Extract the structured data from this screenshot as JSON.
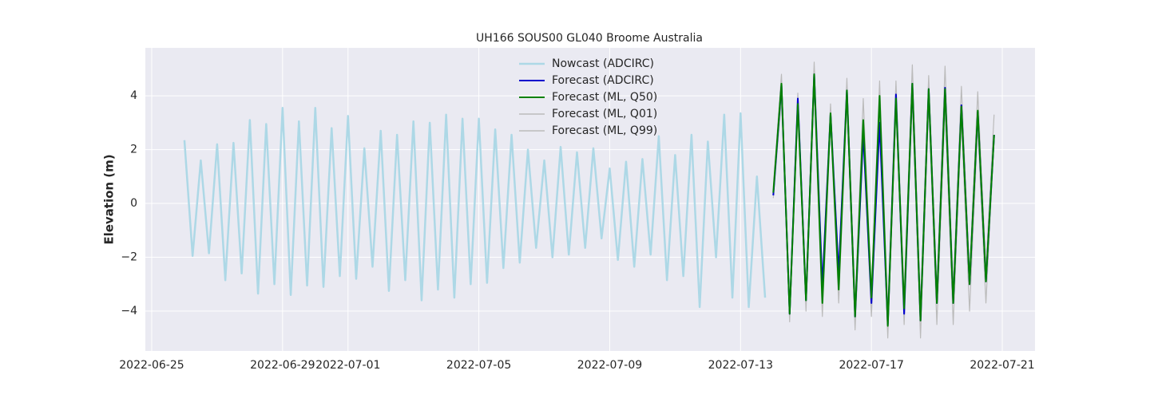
{
  "chart_data": {
    "type": "line",
    "title": "UH166 SOUS00 GL040 Broome Australia",
    "ylabel": "Elevation (m)",
    "xlim": [
      "2022-06-24T19:20",
      "2022-07-22T00:00"
    ],
    "xticks": [
      "2022-06-25",
      "2022-06-29",
      "2022-07-01",
      "2022-07-05",
      "2022-07-09",
      "2022-07-13",
      "2022-07-17",
      "2022-07-21"
    ],
    "ylim": [
      -5.48,
      5.78
    ],
    "yticks": [
      {
        "value": -4,
        "label": "−4"
      },
      {
        "value": -2,
        "label": "−2"
      },
      0,
      2,
      4
    ],
    "grid": true,
    "legend": "upper center",
    "series": [
      {
        "name": "Nowcast (ADCIRC)",
        "color": "#add8e6",
        "linewidth": 2.5,
        "x": [
          "2022-06-26T00:00",
          "2022-06-26T06:00",
          "2022-06-26T12:00",
          "2022-06-26T18:00",
          "2022-06-27T00:00",
          "2022-06-27T06:00",
          "2022-06-27T12:00",
          "2022-06-27T18:00",
          "2022-06-28T00:00",
          "2022-06-28T06:00",
          "2022-06-28T12:00",
          "2022-06-28T18:00",
          "2022-06-29T00:00",
          "2022-06-29T06:00",
          "2022-06-29T12:00",
          "2022-06-29T18:00",
          "2022-06-30T00:00",
          "2022-06-30T06:00",
          "2022-06-30T12:00",
          "2022-06-30T18:00",
          "2022-07-01T00:00",
          "2022-07-01T06:00",
          "2022-07-01T12:00",
          "2022-07-01T18:00",
          "2022-07-02T00:00",
          "2022-07-02T06:00",
          "2022-07-02T12:00",
          "2022-07-02T18:00",
          "2022-07-03T00:00",
          "2022-07-03T06:00",
          "2022-07-03T12:00",
          "2022-07-03T18:00",
          "2022-07-04T00:00",
          "2022-07-04T06:00",
          "2022-07-04T12:00",
          "2022-07-04T18:00",
          "2022-07-05T00:00",
          "2022-07-05T06:00",
          "2022-07-05T12:00",
          "2022-07-05T18:00",
          "2022-07-06T00:00",
          "2022-07-06T06:00",
          "2022-07-06T12:00",
          "2022-07-06T18:00",
          "2022-07-07T00:00",
          "2022-07-07T06:00",
          "2022-07-07T12:00",
          "2022-07-07T18:00",
          "2022-07-08T00:00",
          "2022-07-08T06:00",
          "2022-07-08T12:00",
          "2022-07-08T18:00",
          "2022-07-09T00:00",
          "2022-07-09T06:00",
          "2022-07-09T12:00",
          "2022-07-09T18:00",
          "2022-07-10T00:00",
          "2022-07-10T06:00",
          "2022-07-10T12:00",
          "2022-07-10T18:00",
          "2022-07-11T00:00",
          "2022-07-11T06:00",
          "2022-07-11T12:00",
          "2022-07-11T18:00",
          "2022-07-12T00:00",
          "2022-07-12T06:00",
          "2022-07-12T12:00",
          "2022-07-12T18:00",
          "2022-07-13T00:00",
          "2022-07-13T06:00",
          "2022-07-13T12:00",
          "2022-07-13T18:00"
        ],
        "values": [
          2.35,
          -1.95,
          1.6,
          -1.85,
          2.2,
          -2.85,
          2.25,
          -2.6,
          3.1,
          -3.35,
          2.95,
          -3.0,
          3.55,
          -3.4,
          3.05,
          -3.05,
          3.55,
          -3.1,
          2.8,
          -2.7,
          3.25,
          -2.8,
          2.05,
          -2.35,
          2.7,
          -3.25,
          2.55,
          -2.85,
          3.05,
          -3.6,
          3.0,
          -3.2,
          3.3,
          -3.5,
          3.15,
          -3.0,
          3.15,
          -2.95,
          2.75,
          -2.4,
          2.55,
          -2.2,
          2.0,
          -1.65,
          1.6,
          -2.0,
          2.1,
          -1.9,
          1.9,
          -1.65,
          2.05,
          -1.3,
          1.3,
          -2.1,
          1.55,
          -2.35,
          1.65,
          -1.9,
          2.5,
          -2.85,
          1.8,
          -2.7,
          2.55,
          -3.85,
          2.3,
          -2.0,
          3.3,
          -3.5,
          3.35,
          -3.85,
          1.0,
          -3.5
        ]
      },
      {
        "name": "Forecast (ADCIRC)",
        "color": "#0000cd",
        "linewidth": 2,
        "x": [
          "2022-07-14T00:00",
          "2022-07-14T06:00",
          "2022-07-14T12:00",
          "2022-07-14T18:00",
          "2022-07-15T00:00",
          "2022-07-15T06:00",
          "2022-07-15T12:00",
          "2022-07-15T18:00",
          "2022-07-16T00:00",
          "2022-07-16T06:00",
          "2022-07-16T12:00",
          "2022-07-16T18:00",
          "2022-07-17T00:00",
          "2022-07-17T06:00",
          "2022-07-17T12:00",
          "2022-07-17T18:00",
          "2022-07-18T00:00",
          "2022-07-18T06:00",
          "2022-07-18T12:00",
          "2022-07-18T18:00",
          "2022-07-19T00:00",
          "2022-07-19T06:00",
          "2022-07-19T12:00",
          "2022-07-19T18:00",
          "2022-07-20T00:00",
          "2022-07-20T06:00",
          "2022-07-20T12:00",
          "2022-07-20T18:00"
        ],
        "values": [
          0.3,
          4.4,
          -4.1,
          3.9,
          -3.6,
          4.8,
          -3.1,
          3.3,
          -2.6,
          4.2,
          -4.2,
          2.6,
          -3.7,
          3.0,
          -4.5,
          4.05,
          -4.1,
          4.45,
          -4.35,
          4.25,
          -3.7,
          4.3,
          -3.7,
          3.65,
          -3.0,
          3.4,
          -2.9,
          2.55
        ]
      },
      {
        "name": "Forecast (ML, Q50)",
        "color": "#008000",
        "linewidth": 2,
        "x": [
          "2022-07-14T00:00",
          "2022-07-14T06:00",
          "2022-07-14T12:00",
          "2022-07-14T18:00",
          "2022-07-15T00:00",
          "2022-07-15T06:00",
          "2022-07-15T12:00",
          "2022-07-15T18:00",
          "2022-07-16T00:00",
          "2022-07-16T06:00",
          "2022-07-16T12:00",
          "2022-07-16T18:00",
          "2022-07-17T00:00",
          "2022-07-17T06:00",
          "2022-07-17T12:00",
          "2022-07-17T18:00",
          "2022-07-18T00:00",
          "2022-07-18T06:00",
          "2022-07-18T12:00",
          "2022-07-18T18:00",
          "2022-07-19T00:00",
          "2022-07-19T06:00",
          "2022-07-19T12:00",
          "2022-07-19T18:00",
          "2022-07-20T00:00",
          "2022-07-20T06:00",
          "2022-07-20T12:00",
          "2022-07-20T18:00"
        ],
        "values": [
          0.4,
          4.45,
          -4.1,
          3.7,
          -3.6,
          4.8,
          -3.7,
          3.35,
          -3.2,
          4.2,
          -4.2,
          3.1,
          -3.5,
          4.0,
          -4.55,
          3.9,
          -3.9,
          4.45,
          -4.35,
          4.25,
          -3.7,
          4.25,
          -3.7,
          3.6,
          -3.0,
          3.45,
          -2.9,
          2.55
        ]
      },
      {
        "name": "Forecast (ML, Q01)",
        "color": "#bbbbbb",
        "linewidth": 1.2,
        "x": [
          "2022-07-14T00:00",
          "2022-07-14T06:00",
          "2022-07-14T12:00",
          "2022-07-14T18:00",
          "2022-07-15T00:00",
          "2022-07-15T06:00",
          "2022-07-15T12:00",
          "2022-07-15T18:00",
          "2022-07-16T00:00",
          "2022-07-16T06:00",
          "2022-07-16T12:00",
          "2022-07-16T18:00",
          "2022-07-17T00:00",
          "2022-07-17T06:00",
          "2022-07-17T12:00",
          "2022-07-17T18:00",
          "2022-07-18T00:00",
          "2022-07-18T06:00",
          "2022-07-18T12:00",
          "2022-07-18T18:00",
          "2022-07-19T00:00",
          "2022-07-19T06:00",
          "2022-07-19T12:00",
          "2022-07-19T18:00",
          "2022-07-20T00:00",
          "2022-07-20T06:00",
          "2022-07-20T12:00",
          "2022-07-20T18:00"
        ],
        "values": [
          0.2,
          3.9,
          -4.4,
          3.6,
          -4.0,
          4.3,
          -4.2,
          3.0,
          -3.7,
          3.8,
          -4.7,
          2.5,
          -4.2,
          3.3,
          -5.0,
          3.6,
          -4.5,
          3.9,
          -5.0,
          3.7,
          -4.5,
          3.6,
          -4.5,
          3.1,
          -4.0,
          2.9,
          -3.7,
          2.4
        ]
      },
      {
        "name": "Forecast (ML, Q99)",
        "color": "#bbbbbb",
        "linewidth": 1.2,
        "x": [
          "2022-07-14T00:00",
          "2022-07-14T06:00",
          "2022-07-14T12:00",
          "2022-07-14T18:00",
          "2022-07-15T00:00",
          "2022-07-15T06:00",
          "2022-07-15T12:00",
          "2022-07-15T18:00",
          "2022-07-16T00:00",
          "2022-07-16T06:00",
          "2022-07-16T12:00",
          "2022-07-16T18:00",
          "2022-07-17T00:00",
          "2022-07-17T06:00",
          "2022-07-17T12:00",
          "2022-07-17T18:00",
          "2022-07-18T00:00",
          "2022-07-18T06:00",
          "2022-07-18T12:00",
          "2022-07-18T18:00",
          "2022-07-19T00:00",
          "2022-07-19T06:00",
          "2022-07-19T12:00",
          "2022-07-19T18:00",
          "2022-07-20T00:00",
          "2022-07-20T06:00",
          "2022-07-20T12:00",
          "2022-07-20T18:00"
        ],
        "values": [
          0.6,
          4.8,
          -3.9,
          4.1,
          -3.3,
          5.25,
          -2.9,
          3.7,
          -2.5,
          4.65,
          -3.7,
          3.9,
          -3.3,
          4.55,
          -4.0,
          4.55,
          -3.5,
          5.15,
          -3.8,
          4.75,
          -3.2,
          5.1,
          -3.2,
          4.35,
          -2.6,
          4.15,
          -2.4,
          3.3
        ]
      }
    ]
  }
}
